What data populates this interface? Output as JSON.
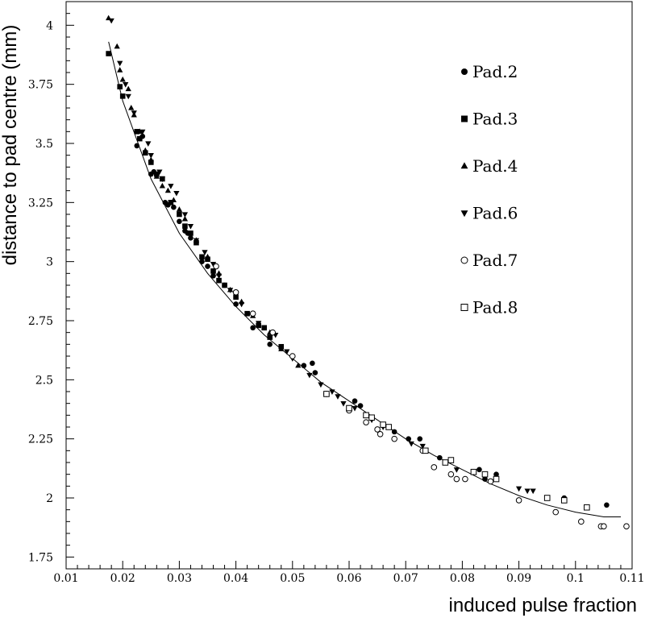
{
  "chart_data": {
    "type": "scatter",
    "title": "",
    "xlabel": "induced pulse fraction",
    "ylabel": "distance to pad centre (mm)",
    "xlim": [
      0.01,
      0.11
    ],
    "ylim": [
      1.7,
      4.1
    ],
    "xticks": [
      0.01,
      0.02,
      0.03,
      0.04,
      0.05,
      0.06,
      0.07,
      0.08,
      0.09,
      0.1,
      0.11
    ],
    "xtick_labels": [
      "0.01",
      "0.02",
      "0.03",
      "0.04",
      "0.05",
      "0.06",
      "0.07",
      "0.08",
      "0.09",
      "0.1",
      "0.11"
    ],
    "yticks": [
      1.75,
      2,
      2.25,
      2.5,
      2.75,
      3,
      3.25,
      3.5,
      3.75,
      4
    ],
    "ytick_labels": [
      "1.75",
      "2",
      "2.25",
      "2.5",
      "2.75",
      "3",
      "3.25",
      "3.5",
      "3.75",
      "4"
    ],
    "legend_position": "top-right",
    "grid": false,
    "fit_curve": {
      "x": [
        0.0175,
        0.02,
        0.025,
        0.03,
        0.035,
        0.04,
        0.045,
        0.05,
        0.055,
        0.06,
        0.065,
        0.07,
        0.075,
        0.08,
        0.085,
        0.09,
        0.095,
        0.1,
        0.105,
        0.108
      ],
      "y": [
        3.93,
        3.68,
        3.35,
        3.12,
        2.95,
        2.81,
        2.69,
        2.59,
        2.49,
        2.41,
        2.33,
        2.25,
        2.18,
        2.12,
        2.06,
        2.01,
        1.97,
        1.94,
        1.92,
        1.92
      ]
    },
    "series": [
      {
        "name": "Pad.2",
        "marker": "circle-filled",
        "points": [
          [
            0.0225,
            3.49
          ],
          [
            0.0235,
            3.53
          ],
          [
            0.025,
            3.37
          ],
          [
            0.0255,
            3.38
          ],
          [
            0.0275,
            3.25
          ],
          [
            0.028,
            3.24
          ],
          [
            0.029,
            3.23
          ],
          [
            0.03,
            3.17
          ],
          [
            0.031,
            3.13
          ],
          [
            0.0315,
            3.12
          ],
          [
            0.032,
            3.1
          ],
          [
            0.034,
            3.0
          ],
          [
            0.035,
            2.98
          ],
          [
            0.036,
            2.94
          ],
          [
            0.038,
            2.9
          ],
          [
            0.04,
            2.82
          ],
          [
            0.043,
            2.72
          ],
          [
            0.046,
            2.65
          ],
          [
            0.052,
            2.56
          ],
          [
            0.0535,
            2.57
          ],
          [
            0.054,
            2.53
          ],
          [
            0.061,
            2.41
          ],
          [
            0.062,
            2.39
          ],
          [
            0.068,
            2.28
          ],
          [
            0.0705,
            2.25
          ],
          [
            0.0725,
            2.25
          ],
          [
            0.076,
            2.17
          ],
          [
            0.083,
            2.12
          ],
          [
            0.084,
            2.08
          ],
          [
            0.086,
            2.1
          ],
          [
            0.098,
            2.0
          ],
          [
            0.1055,
            1.97
          ]
        ]
      },
      {
        "name": "Pad.3",
        "marker": "square-filled",
        "points": [
          [
            0.0175,
            3.88
          ],
          [
            0.0195,
            3.74
          ],
          [
            0.02,
            3.7
          ],
          [
            0.0225,
            3.55
          ],
          [
            0.023,
            3.52
          ],
          [
            0.024,
            3.46
          ],
          [
            0.025,
            3.42
          ],
          [
            0.026,
            3.37
          ],
          [
            0.027,
            3.35
          ],
          [
            0.0285,
            3.25
          ],
          [
            0.03,
            3.2
          ],
          [
            0.031,
            3.15
          ],
          [
            0.032,
            3.12
          ],
          [
            0.033,
            3.08
          ],
          [
            0.034,
            3.02
          ],
          [
            0.035,
            3.01
          ],
          [
            0.036,
            2.96
          ],
          [
            0.037,
            2.92
          ],
          [
            0.038,
            2.9
          ],
          [
            0.04,
            2.85
          ],
          [
            0.042,
            2.78
          ],
          [
            0.044,
            2.73
          ],
          [
            0.045,
            2.72
          ],
          [
            0.046,
            2.68
          ],
          [
            0.048,
            2.64
          ]
        ]
      },
      {
        "name": "Pad.4",
        "marker": "triangle-up-filled",
        "points": [
          [
            0.0175,
            4.03
          ],
          [
            0.019,
            3.91
          ],
          [
            0.0195,
            3.81
          ],
          [
            0.02,
            3.77
          ],
          [
            0.021,
            3.73
          ],
          [
            0.0215,
            3.65
          ],
          [
            0.022,
            3.62
          ],
          [
            0.023,
            3.55
          ],
          [
            0.024,
            3.47
          ],
          [
            0.025,
            3.43
          ],
          [
            0.026,
            3.36
          ],
          [
            0.027,
            3.32
          ],
          [
            0.028,
            3.3
          ],
          [
            0.029,
            3.26
          ],
          [
            0.03,
            3.22
          ],
          [
            0.031,
            3.18
          ],
          [
            0.033,
            3.09
          ],
          [
            0.035,
            3.02
          ],
          [
            0.037,
            2.95
          ],
          [
            0.039,
            2.88
          ],
          [
            0.041,
            2.83
          ],
          [
            0.043,
            2.77
          ],
          [
            0.046,
            2.7
          ],
          [
            0.048,
            2.63
          ],
          [
            0.051,
            2.56
          ]
        ]
      },
      {
        "name": "Pad.6",
        "marker": "triangle-down-filled",
        "points": [
          [
            0.018,
            4.02
          ],
          [
            0.0195,
            3.84
          ],
          [
            0.0205,
            3.75
          ],
          [
            0.021,
            3.7
          ],
          [
            0.022,
            3.63
          ],
          [
            0.0235,
            3.55
          ],
          [
            0.0245,
            3.5
          ],
          [
            0.025,
            3.45
          ],
          [
            0.0265,
            3.38
          ],
          [
            0.027,
            3.35
          ],
          [
            0.0285,
            3.32
          ],
          [
            0.0295,
            3.29
          ],
          [
            0.031,
            3.2
          ],
          [
            0.032,
            3.15
          ],
          [
            0.033,
            3.09
          ],
          [
            0.0345,
            3.04
          ],
          [
            0.036,
            2.99
          ],
          [
            0.037,
            2.94
          ],
          [
            0.039,
            2.88
          ],
          [
            0.041,
            2.82
          ],
          [
            0.044,
            2.74
          ],
          [
            0.047,
            2.69
          ],
          [
            0.049,
            2.62
          ],
          [
            0.05,
            2.59
          ],
          [
            0.053,
            2.52
          ],
          [
            0.055,
            2.48
          ],
          [
            0.057,
            2.45
          ],
          [
            0.058,
            2.43
          ],
          [
            0.059,
            2.4
          ],
          [
            0.061,
            2.38
          ],
          [
            0.064,
            2.33
          ],
          [
            0.066,
            2.3
          ],
          [
            0.071,
            2.23
          ],
          [
            0.073,
            2.22
          ],
          [
            0.079,
            2.12
          ],
          [
            0.085,
            2.07
          ],
          [
            0.09,
            2.04
          ],
          [
            0.0915,
            2.03
          ],
          [
            0.0925,
            2.03
          ]
        ]
      },
      {
        "name": "Pad.7",
        "marker": "circle-open",
        "points": [
          [
            0.0365,
            2.98
          ],
          [
            0.04,
            2.87
          ],
          [
            0.043,
            2.78
          ],
          [
            0.0465,
            2.7
          ],
          [
            0.05,
            2.6
          ],
          [
            0.056,
            2.44
          ],
          [
            0.06,
            2.37
          ],
          [
            0.063,
            2.32
          ],
          [
            0.065,
            2.29
          ],
          [
            0.0655,
            2.27
          ],
          [
            0.068,
            2.25
          ],
          [
            0.073,
            2.2
          ],
          [
            0.075,
            2.13
          ],
          [
            0.078,
            2.1
          ],
          [
            0.079,
            2.08
          ],
          [
            0.0805,
            2.08
          ],
          [
            0.085,
            2.07
          ],
          [
            0.09,
            1.99
          ],
          [
            0.0965,
            1.94
          ],
          [
            0.101,
            1.9
          ],
          [
            0.1045,
            1.88
          ],
          [
            0.105,
            1.88
          ],
          [
            0.109,
            1.88
          ]
        ]
      },
      {
        "name": "Pad.8",
        "marker": "square-open",
        "points": [
          [
            0.056,
            2.44
          ],
          [
            0.06,
            2.38
          ],
          [
            0.063,
            2.35
          ],
          [
            0.064,
            2.34
          ],
          [
            0.066,
            2.31
          ],
          [
            0.067,
            2.3
          ],
          [
            0.0735,
            2.2
          ],
          [
            0.077,
            2.15
          ],
          [
            0.078,
            2.16
          ],
          [
            0.082,
            2.11
          ],
          [
            0.084,
            2.1
          ],
          [
            0.086,
            2.08
          ],
          [
            0.095,
            2.0
          ],
          [
            0.098,
            1.99
          ],
          [
            0.102,
            1.96
          ]
        ]
      }
    ]
  }
}
